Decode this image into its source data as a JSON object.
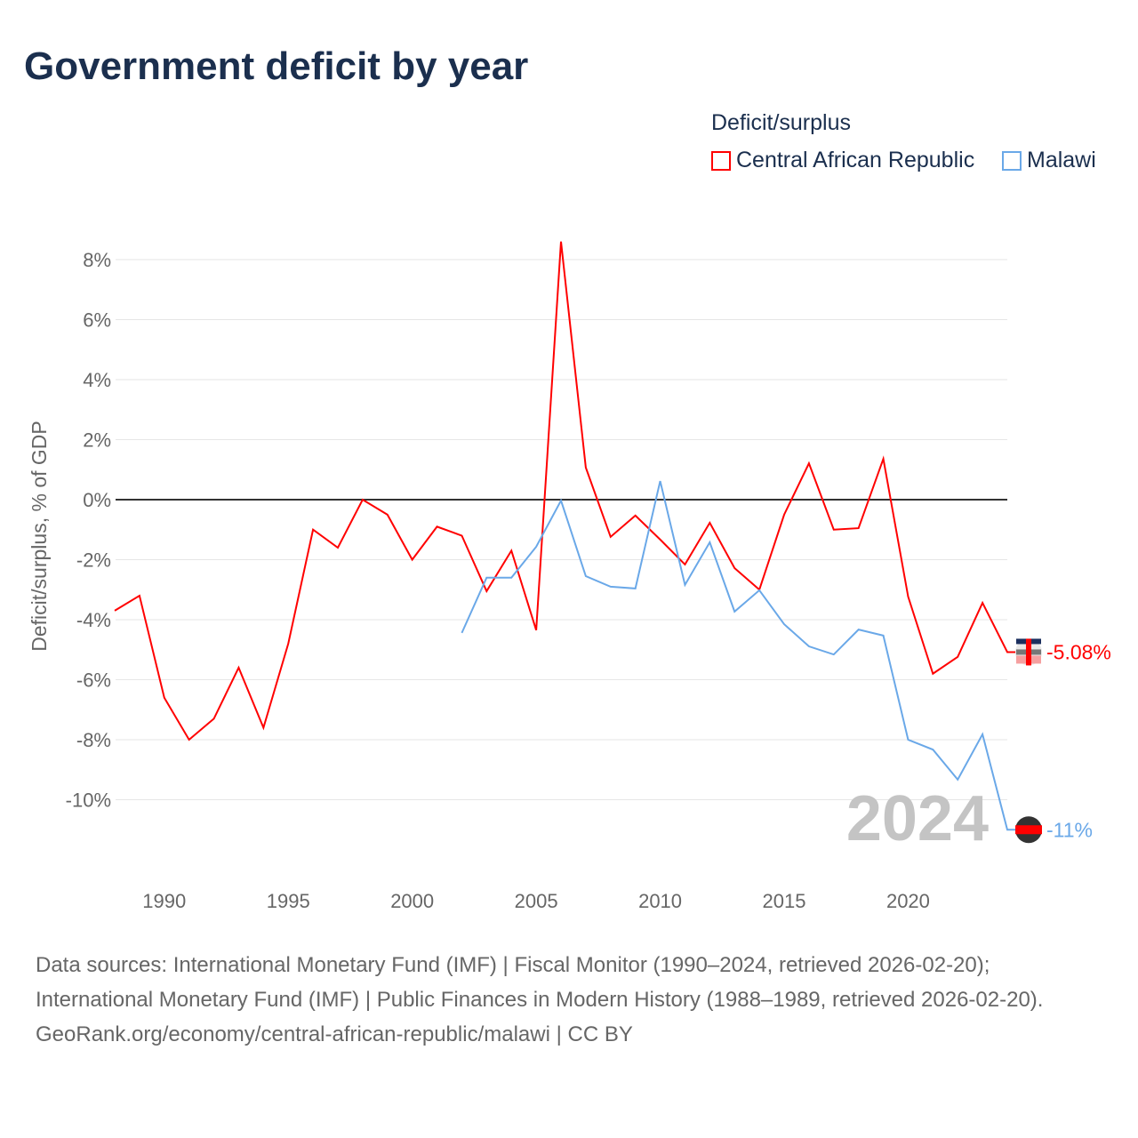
{
  "chart_data": {
    "type": "line",
    "title": "Government deficit by year",
    "ylabel": "Deficit/surplus, % of GDP",
    "xlabel": "",
    "legend_title": "Deficit/surplus",
    "legend_position": "top-right",
    "xlim": [
      1988,
      2024
    ],
    "ylim": [
      -12,
      9
    ],
    "x_ticks": [
      1990,
      1995,
      2000,
      2005,
      2010,
      2015,
      2020
    ],
    "y_ticks": [
      8,
      6,
      4,
      2,
      0,
      -2,
      -4,
      -6,
      -8,
      -10
    ],
    "y_tick_labels": [
      "8%",
      "6%",
      "4%",
      "2%",
      "0%",
      "-2%",
      "-4%",
      "-6%",
      "-8%",
      "-10%"
    ],
    "grid": true,
    "year_watermark": "2024",
    "series": [
      {
        "name": "Central African Republic",
        "color": "#ff0000",
        "end_label": "-5.08%",
        "x": [
          1988,
          1989,
          1990,
          1991,
          1992,
          1993,
          1994,
          1995,
          1996,
          1997,
          1998,
          1999,
          2000,
          2001,
          2002,
          2003,
          2004,
          2005,
          2006,
          2007,
          2008,
          2009,
          2010,
          2011,
          2012,
          2013,
          2014,
          2015,
          2016,
          2017,
          2018,
          2019,
          2020,
          2021,
          2022,
          2023,
          2024
        ],
        "values": [
          -3.7,
          -3.2,
          -6.6,
          -8.0,
          -7.3,
          -5.6,
          -7.6,
          -4.8,
          -1.0,
          -1.6,
          0.0,
          -0.5,
          -2.0,
          -0.9,
          -1.2,
          -3.05,
          -1.7,
          -4.35,
          8.6,
          1.07,
          -1.24,
          -0.53,
          -1.33,
          -2.16,
          -0.77,
          -2.28,
          -3.0,
          -0.5,
          1.21,
          -1.0,
          -0.95,
          1.36,
          -3.23,
          -5.8,
          -5.24,
          -3.44,
          -5.08
        ]
      },
      {
        "name": "Malawi",
        "color": "#6aa8e8",
        "end_label": "-11%",
        "x": [
          2002,
          2003,
          2004,
          2005,
          2006,
          2007,
          2008,
          2009,
          2010,
          2011,
          2012,
          2013,
          2014,
          2015,
          2016,
          2017,
          2018,
          2019,
          2020,
          2021,
          2022,
          2023,
          2024
        ],
        "values": [
          -4.44,
          -2.6,
          -2.6,
          -1.57,
          -0.03,
          -2.55,
          -2.9,
          -2.96,
          0.62,
          -2.84,
          -1.42,
          -3.73,
          -3.02,
          -4.15,
          -4.89,
          -5.16,
          -4.33,
          -4.53,
          -8.0,
          -8.33,
          -9.33,
          -7.82,
          -11.0
        ]
      }
    ]
  },
  "footer": {
    "sources": "Data sources: International Monetary Fund (IMF) | Fiscal Monitor (1990–2024, retrieved 2026-02-20); International Monetary Fund (IMF) | Public Finances in Modern History (1988–1989, retrieved 2026-02-20).",
    "link": "GeoRank.org/economy/central-african-republic/malawi | CC BY"
  }
}
